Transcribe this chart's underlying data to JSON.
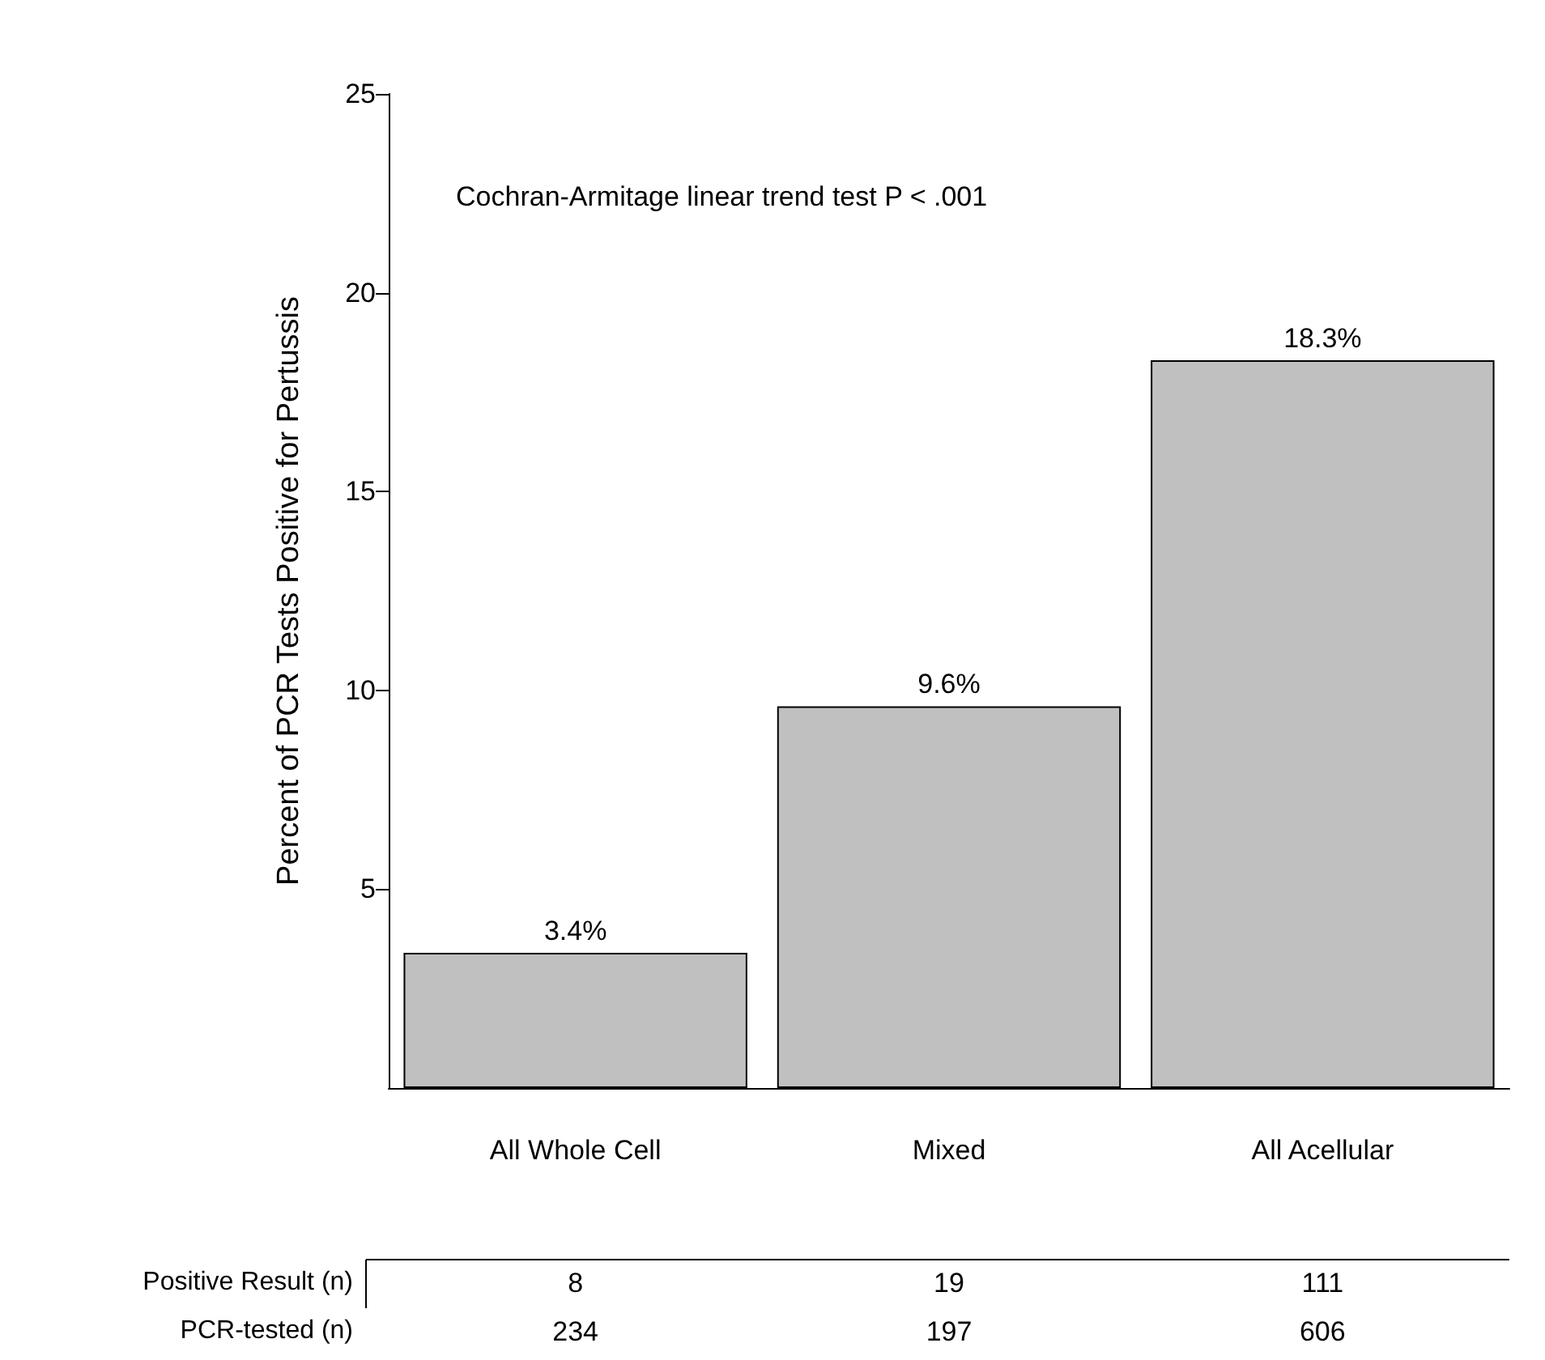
{
  "chart_data": {
    "type": "bar",
    "ylabel": "Percent of PCR Tests Positive for Pertussis",
    "categories": [
      "All Whole Cell",
      "Mixed",
      "All Acellular"
    ],
    "values": [
      3.4,
      9.6,
      18.3
    ],
    "value_labels": [
      "3.4%",
      "9.6%",
      "18.3%"
    ],
    "color": "#c0c0c0",
    "ylim": [
      0,
      25
    ],
    "yticks": [
      5,
      10,
      15,
      20,
      25
    ],
    "grid": false,
    "annotations": [
      "Cochran-Armitage linear trend test P < .001",
      "Positive Result (n)",
      "8",
      "19",
      "111",
      "PCR-tested (n)",
      "234",
      "197",
      "606"
    ]
  }
}
